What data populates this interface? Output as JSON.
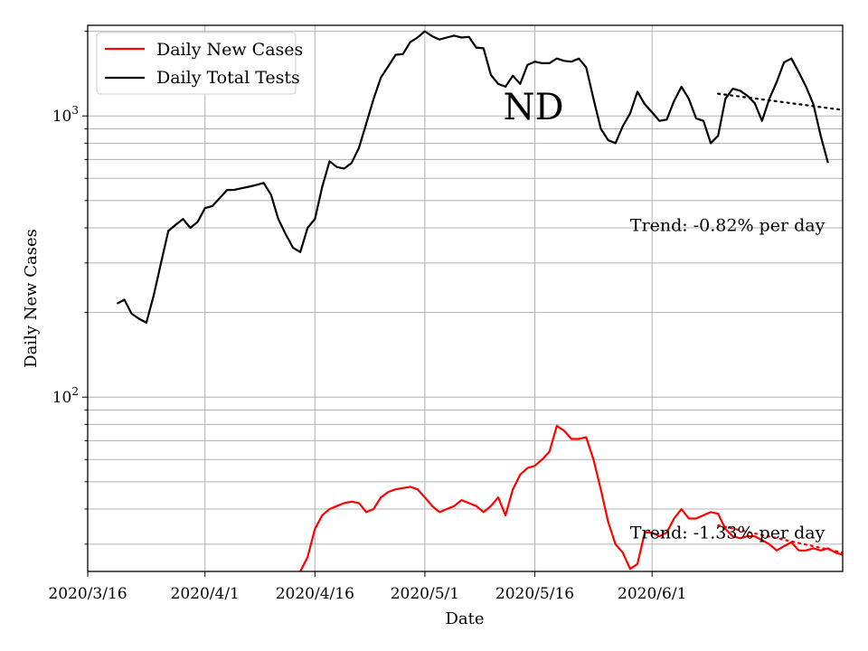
{
  "chart_data": {
    "type": "line",
    "title": "",
    "watermark_label": "ND",
    "xlabel": "Date",
    "ylabel": "Daily New Cases",
    "y_scale": "log",
    "ylim": [
      24,
      2100
    ],
    "xlim": [
      "2020-03-16",
      "2020-06-27"
    ],
    "x_ticks": [
      {
        "date": "2020-03-16",
        "label": "2020/3/16"
      },
      {
        "date": "2020-04-01",
        "label": "2020/4/1"
      },
      {
        "date": "2020-04-16",
        "label": "2020/4/16"
      },
      {
        "date": "2020-05-01",
        "label": "2020/5/1"
      },
      {
        "date": "2020-05-16",
        "label": "2020/5/16"
      },
      {
        "date": "2020-06-01",
        "label": "2020/6/1"
      }
    ],
    "y_major_ticks": [
      {
        "value": 100,
        "base": "10",
        "exp": "2"
      },
      {
        "value": 1000,
        "base": "10",
        "exp": "3"
      }
    ],
    "grid": true,
    "legend": {
      "placement": "top-left",
      "entries": [
        "Daily New Cases",
        "Daily Total Tests"
      ]
    },
    "series": [
      {
        "name": "Daily New Cases",
        "color": "#ff0000",
        "style": "solid",
        "points": [
          [
            "2020-04-14",
            24
          ],
          [
            "2020-04-15",
            27
          ],
          [
            "2020-04-16",
            34
          ],
          [
            "2020-04-17",
            38
          ],
          [
            "2020-04-18",
            40
          ],
          [
            "2020-04-19",
            41
          ],
          [
            "2020-04-20",
            42
          ],
          [
            "2020-04-21",
            42.5
          ],
          [
            "2020-04-22",
            42
          ],
          [
            "2020-04-23",
            39
          ],
          [
            "2020-04-24",
            40
          ],
          [
            "2020-04-25",
            44
          ],
          [
            "2020-04-26",
            46
          ],
          [
            "2020-04-27",
            47
          ],
          [
            "2020-04-28",
            47.5
          ],
          [
            "2020-04-29",
            48
          ],
          [
            "2020-04-30",
            47
          ],
          [
            "2020-05-01",
            44
          ],
          [
            "2020-05-02",
            41
          ],
          [
            "2020-05-03",
            39
          ],
          [
            "2020-05-04",
            40
          ],
          [
            "2020-05-05",
            41
          ],
          [
            "2020-05-06",
            43
          ],
          [
            "2020-05-07",
            42
          ],
          [
            "2020-05-08",
            41
          ],
          [
            "2020-05-09",
            39
          ],
          [
            "2020-05-10",
            41
          ],
          [
            "2020-05-11",
            44
          ],
          [
            "2020-05-12",
            38
          ],
          [
            "2020-05-13",
            47
          ],
          [
            "2020-05-14",
            53
          ],
          [
            "2020-05-15",
            56
          ],
          [
            "2020-05-16",
            57
          ],
          [
            "2020-05-17",
            60
          ],
          [
            "2020-05-18",
            64
          ],
          [
            "2020-05-19",
            79
          ],
          [
            "2020-05-20",
            76
          ],
          [
            "2020-05-21",
            71
          ],
          [
            "2020-05-22",
            71
          ],
          [
            "2020-05-23",
            72
          ],
          [
            "2020-05-24",
            60
          ],
          [
            "2020-05-25",
            47
          ],
          [
            "2020-05-26",
            36
          ],
          [
            "2020-05-27",
            30
          ],
          [
            "2020-05-28",
            28
          ],
          [
            "2020-05-29",
            24.5
          ],
          [
            "2020-05-30",
            25.5
          ],
          [
            "2020-05-31",
            33
          ],
          [
            "2020-06-01",
            33
          ],
          [
            "2020-06-02",
            32
          ],
          [
            "2020-06-03",
            33
          ],
          [
            "2020-06-04",
            37
          ],
          [
            "2020-06-05",
            40
          ],
          [
            "2020-06-06",
            37
          ],
          [
            "2020-06-07",
            37
          ],
          [
            "2020-06-08",
            38
          ],
          [
            "2020-06-09",
            39
          ],
          [
            "2020-06-10",
            38.5
          ],
          [
            "2020-06-11",
            34
          ],
          [
            "2020-06-12",
            32
          ],
          [
            "2020-06-13",
            31.5
          ],
          [
            "2020-06-14",
            32
          ],
          [
            "2020-06-15",
            32
          ],
          [
            "2020-06-16",
            31
          ],
          [
            "2020-06-17",
            30
          ],
          [
            "2020-06-18",
            28.5
          ],
          [
            "2020-06-19",
            29.5
          ],
          [
            "2020-06-20",
            30.5
          ],
          [
            "2020-06-21",
            28.5
          ],
          [
            "2020-06-22",
            28.5
          ],
          [
            "2020-06-23",
            29
          ],
          [
            "2020-06-24",
            28.5
          ],
          [
            "2020-06-25",
            29
          ],
          [
            "2020-06-26",
            28
          ],
          [
            "2020-06-27",
            27.5
          ]
        ]
      },
      {
        "name": "Daily Total Tests",
        "color": "#000000",
        "style": "solid",
        "points": [
          [
            "2020-03-20",
            215
          ],
          [
            "2020-03-21",
            222
          ],
          [
            "2020-03-22",
            198
          ],
          [
            "2020-03-23",
            190
          ],
          [
            "2020-03-24",
            184
          ],
          [
            "2020-03-25",
            230
          ],
          [
            "2020-03-26",
            300
          ],
          [
            "2020-03-27",
            390
          ],
          [
            "2020-03-28",
            410
          ],
          [
            "2020-03-29",
            430
          ],
          [
            "2020-03-30",
            400
          ],
          [
            "2020-03-31",
            420
          ],
          [
            "2020-04-01",
            470
          ],
          [
            "2020-04-02",
            478
          ],
          [
            "2020-04-03",
            510
          ],
          [
            "2020-04-04",
            545
          ],
          [
            "2020-04-05",
            546
          ],
          [
            "2020-04-06",
            553
          ],
          [
            "2020-04-07",
            560
          ],
          [
            "2020-04-08",
            568
          ],
          [
            "2020-04-09",
            578
          ],
          [
            "2020-04-10",
            525
          ],
          [
            "2020-04-11",
            430
          ],
          [
            "2020-04-12",
            380
          ],
          [
            "2020-04-13",
            340
          ],
          [
            "2020-04-14",
            328
          ],
          [
            "2020-04-15",
            400
          ],
          [
            "2020-04-16",
            430
          ],
          [
            "2020-04-17",
            560
          ],
          [
            "2020-04-18",
            690
          ],
          [
            "2020-04-19",
            658
          ],
          [
            "2020-04-20",
            650
          ],
          [
            "2020-04-21",
            680
          ],
          [
            "2020-04-22",
            770
          ],
          [
            "2020-04-23",
            940
          ],
          [
            "2020-04-24",
            1150
          ],
          [
            "2020-04-25",
            1370
          ],
          [
            "2020-04-26",
            1500
          ],
          [
            "2020-04-27",
            1650
          ],
          [
            "2020-04-28",
            1660
          ],
          [
            "2020-04-29",
            1830
          ],
          [
            "2020-04-30",
            1900
          ],
          [
            "2020-05-01",
            2000
          ],
          [
            "2020-05-02",
            1920
          ],
          [
            "2020-05-03",
            1870
          ],
          [
            "2020-05-04",
            1900
          ],
          [
            "2020-05-05",
            1930
          ],
          [
            "2020-05-06",
            1900
          ],
          [
            "2020-05-07",
            1910
          ],
          [
            "2020-05-08",
            1750
          ],
          [
            "2020-05-09",
            1740
          ],
          [
            "2020-05-10",
            1400
          ],
          [
            "2020-05-11",
            1300
          ],
          [
            "2020-05-12",
            1270
          ],
          [
            "2020-05-13",
            1390
          ],
          [
            "2020-05-14",
            1300
          ],
          [
            "2020-05-15",
            1520
          ],
          [
            "2020-05-16",
            1560
          ],
          [
            "2020-05-17",
            1540
          ],
          [
            "2020-05-18",
            1540
          ],
          [
            "2020-05-19",
            1600
          ],
          [
            "2020-05-20",
            1570
          ],
          [
            "2020-05-21",
            1560
          ],
          [
            "2020-05-22",
            1600
          ],
          [
            "2020-05-23",
            1490
          ],
          [
            "2020-05-24",
            1150
          ],
          [
            "2020-05-25",
            900
          ],
          [
            "2020-05-26",
            820
          ],
          [
            "2020-05-27",
            800
          ],
          [
            "2020-05-28",
            920
          ],
          [
            "2020-05-29",
            1020
          ],
          [
            "2020-05-30",
            1220
          ],
          [
            "2020-05-31",
            1100
          ],
          [
            "2020-06-01",
            1030
          ],
          [
            "2020-06-02",
            960
          ],
          [
            "2020-06-03",
            970
          ],
          [
            "2020-06-04",
            1130
          ],
          [
            "2020-06-05",
            1270
          ],
          [
            "2020-06-06",
            1150
          ],
          [
            "2020-06-07",
            980
          ],
          [
            "2020-06-08",
            960
          ],
          [
            "2020-06-09",
            800
          ],
          [
            "2020-06-10",
            850
          ],
          [
            "2020-06-11",
            1150
          ],
          [
            "2020-06-12",
            1250
          ],
          [
            "2020-06-13",
            1230
          ],
          [
            "2020-06-14",
            1180
          ],
          [
            "2020-06-15",
            1110
          ],
          [
            "2020-06-16",
            960
          ],
          [
            "2020-06-17",
            1150
          ],
          [
            "2020-06-18",
            1320
          ],
          [
            "2020-06-19",
            1550
          ],
          [
            "2020-06-20",
            1600
          ],
          [
            "2020-06-21",
            1430
          ],
          [
            "2020-06-22",
            1270
          ],
          [
            "2020-06-23",
            1100
          ],
          [
            "2020-06-24",
            850
          ],
          [
            "2020-06-25",
            680
          ]
        ]
      }
    ],
    "trend_lines": [
      {
        "color": "#000000",
        "style": "dotted",
        "points": [
          [
            "2020-06-10",
            1200
          ],
          [
            "2020-06-27",
            1050
          ]
        ]
      },
      {
        "color": "#ff0000",
        "style": "dotted",
        "points": [
          [
            "2020-06-10",
            35
          ],
          [
            "2020-06-27",
            28
          ]
        ]
      }
    ],
    "annotations": [
      {
        "text": "Trend: -0.82% per day",
        "date": "2020-05-29",
        "value": 390
      },
      {
        "text": "Trend: -1.33% per day",
        "date": "2020-05-29",
        "value": 31.5
      }
    ]
  }
}
